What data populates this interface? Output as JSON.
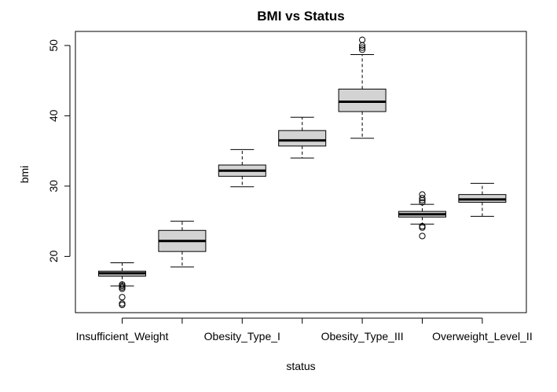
{
  "chart_data": {
    "type": "boxplot",
    "title": "BMI vs Status",
    "xlabel": "status",
    "ylabel": "bmi",
    "ylim": [
      12.0,
      52.0
    ],
    "yticks": [
      20,
      30,
      40,
      50
    ],
    "x_tick_labels_shown": [
      "Insufficient_Weight",
      "Obesity_Type_I",
      "Obesity_Type_III",
      "Overweight_Level_II"
    ],
    "grid": false,
    "legend": "none",
    "box_fill": "#d3d3d3",
    "series": [
      {
        "box": {
          "whisker_low": 15.8,
          "q1": 17.2,
          "median": 17.6,
          "q3": 17.9,
          "whisker_high": 19.1
        },
        "outliers": [
          15.4,
          15.6,
          15.8,
          16.0,
          14.2,
          13.3,
          13.1
        ]
      },
      {
        "box": {
          "whisker_low": 18.5,
          "q1": 20.7,
          "median": 22.2,
          "q3": 23.7,
          "whisker_high": 25.0
        },
        "outliers": []
      },
      {
        "box": {
          "whisker_low": 29.9,
          "q1": 31.4,
          "median": 32.2,
          "q3": 33.0,
          "whisker_high": 35.2
        },
        "outliers": []
      },
      {
        "box": {
          "whisker_low": 34.0,
          "q1": 35.7,
          "median": 36.5,
          "q3": 37.9,
          "whisker_high": 39.8
        },
        "outliers": []
      },
      {
        "box": {
          "whisker_low": 36.8,
          "q1": 40.6,
          "median": 42.0,
          "q3": 43.8,
          "whisker_high": 48.7
        },
        "outliers": [
          49.4,
          49.7,
          50.0,
          50.8
        ]
      },
      {
        "box": {
          "whisker_low": 24.6,
          "q1": 25.6,
          "median": 26.0,
          "q3": 26.4,
          "whisker_high": 27.4
        },
        "outliers": [
          28.8,
          28.3,
          28.0,
          27.7,
          24.3,
          24.1,
          22.9
        ]
      },
      {
        "box": {
          "whisker_low": 25.7,
          "q1": 27.7,
          "median": 28.1,
          "q3": 28.8,
          "whisker_high": 30.4
        },
        "outliers": []
      }
    ]
  }
}
